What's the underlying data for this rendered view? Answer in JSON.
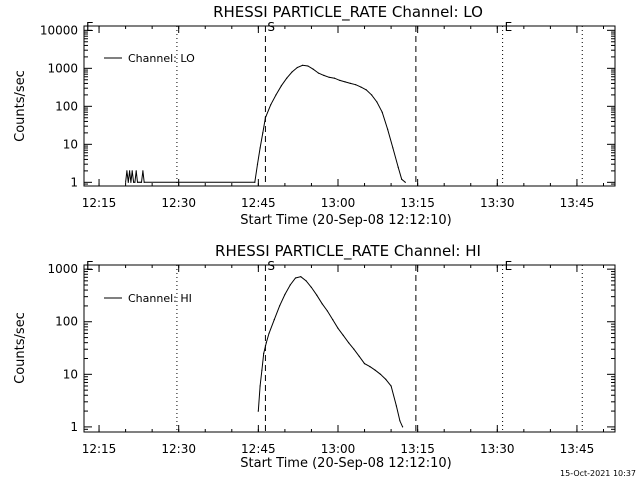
{
  "footer": {
    "timestamp": "15-Oct-2021 10:37"
  },
  "chart_data": [
    {
      "type": "line",
      "title": "RHESSI PARTICLE_RATE Channel: LO",
      "xlabel": "Start Time (20-Sep-08 12:12:10)",
      "ylabel": "Counts/sec",
      "yscale": "log",
      "xlim": [
        "12:12:10",
        "13:52:10"
      ],
      "ylim": [
        0.8,
        13000
      ],
      "xticks": [
        "12:15",
        "12:30",
        "12:45",
        "13:00",
        "13:15",
        "13:30",
        "13:45"
      ],
      "yticks": [
        "1",
        "10",
        "100",
        "1000",
        "10000"
      ],
      "legend": {
        "position": "top-left",
        "entries": [
          "Channel: LO"
        ]
      },
      "markers": [
        {
          "label": "E",
          "time": "12:12:10",
          "style": "dotted"
        },
        {
          "label": "",
          "time": "12:29:40",
          "style": "dotted"
        },
        {
          "label": "S",
          "time": "12:46:20",
          "style": "dashed"
        },
        {
          "label": "",
          "time": "13:14:40",
          "style": "dashed"
        },
        {
          "label": "E",
          "time": "13:31:00",
          "style": "dotted"
        },
        {
          "label": "",
          "time": "13:46:00",
          "style": "dotted"
        }
      ],
      "series": [
        {
          "name": "Channel: LO",
          "x": [
            "12:20:00",
            "12:20:15",
            "12:20:30",
            "12:20:45",
            "12:21:00",
            "12:21:15",
            "12:21:30",
            "12:21:45",
            "12:22:00",
            "12:22:15",
            "12:22:30",
            "12:22:45",
            "12:23:00",
            "12:23:15",
            "12:23:30",
            "12:44:20",
            "12:44:50",
            "12:45:20",
            "12:45:50",
            "12:46:20",
            "12:47:20",
            "12:48:20",
            "12:49:20",
            "12:50:20",
            "12:51:20",
            "12:52:20",
            "12:53:20",
            "12:54:20",
            "12:55:20",
            "12:56:20",
            "12:57:20",
            "12:58:20",
            "12:59:20",
            "13:00:20",
            "13:01:20",
            "13:02:20",
            "13:03:20",
            "13:04:20",
            "13:05:20",
            "13:06:20",
            "13:07:20",
            "13:08:20",
            "13:09:20",
            "13:10:20",
            "13:11:20",
            "13:12:00",
            "13:12:40"
          ],
          "y": [
            1,
            2,
            1,
            2,
            1,
            2,
            1,
            1,
            2,
            1,
            1,
            1,
            1,
            2,
            1,
            1,
            3,
            8,
            20,
            50,
            110,
            200,
            350,
            550,
            800,
            1050,
            1200,
            1150,
            950,
            750,
            650,
            580,
            550,
            480,
            440,
            400,
            370,
            320,
            270,
            200,
            130,
            70,
            25,
            8,
            2.5,
            1.2,
            1
          ]
        }
      ]
    },
    {
      "type": "line",
      "title": "RHESSI PARTICLE_RATE Channel: HI",
      "xlabel": "Start Time (20-Sep-08 12:12:10)",
      "ylabel": "Counts/sec",
      "yscale": "log",
      "xlim": [
        "12:12:10",
        "13:52:10"
      ],
      "ylim": [
        0.8,
        1200
      ],
      "xticks": [
        "12:15",
        "12:30",
        "12:45",
        "13:00",
        "13:15",
        "13:30",
        "13:45"
      ],
      "yticks": [
        "1",
        "10",
        "100",
        "1000"
      ],
      "legend": {
        "position": "top-left",
        "entries": [
          "Channel: HI"
        ]
      },
      "markers": [
        {
          "label": "E",
          "time": "12:12:10",
          "style": "dotted"
        },
        {
          "label": "",
          "time": "12:29:40",
          "style": "dotted"
        },
        {
          "label": "S",
          "time": "12:46:20",
          "style": "dashed"
        },
        {
          "label": "",
          "time": "13:14:40",
          "style": "dashed"
        },
        {
          "label": "E",
          "time": "13:31:00",
          "style": "dotted"
        },
        {
          "label": "",
          "time": "13:46:00",
          "style": "dotted"
        }
      ],
      "series": [
        {
          "name": "Channel: HI",
          "x": [
            "12:45:00",
            "12:45:20",
            "12:45:40",
            "12:46:00",
            "12:46:30",
            "12:47:00",
            "12:48:00",
            "12:49:00",
            "12:50:00",
            "12:51:00",
            "12:52:00",
            "12:53:00",
            "12:54:00",
            "12:55:00",
            "12:56:00",
            "12:57:00",
            "12:58:00",
            "12:59:00",
            "13:00:00",
            "13:01:00",
            "13:02:00",
            "13:03:00",
            "13:04:00",
            "13:05:00",
            "13:06:00",
            "13:07:00",
            "13:08:00",
            "13:09:00",
            "13:10:00",
            "13:11:00",
            "13:11:40",
            "13:12:10"
          ],
          "y": [
            2,
            6,
            12,
            25,
            40,
            60,
            110,
            200,
            330,
            500,
            680,
            720,
            600,
            450,
            320,
            220,
            160,
            110,
            75,
            55,
            40,
            30,
            22,
            16,
            14,
            12,
            10,
            8,
            6,
            2.5,
            1.3,
            1
          ]
        }
      ]
    }
  ]
}
